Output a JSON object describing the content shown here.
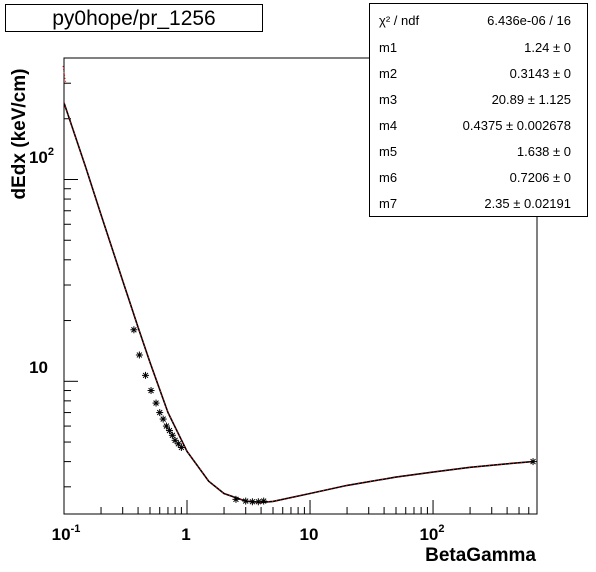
{
  "title": "py0hope/pr_1256",
  "stats": {
    "chi2_label": "χ² / ndf",
    "chi2_value": "6.436e-06 / 16",
    "params": [
      {
        "name": "m1",
        "value": "1.24 ±     0"
      },
      {
        "name": "m2",
        "value": "0.3143 ±     0"
      },
      {
        "name": "m3",
        "value": "20.89 ± 1.125"
      },
      {
        "name": "m4",
        "value": "0.4375 ± 0.002678"
      },
      {
        "name": "m5",
        "value": "1.638 ±     0"
      },
      {
        "name": "m6",
        "value": "0.7206 ±     0"
      },
      {
        "name": "m7",
        "value": "2.35 ± 0.02191"
      }
    ]
  },
  "chart_data": {
    "type": "scatter",
    "xlabel": "BetaGamma",
    "ylabel": "dEdx (keV/cm)",
    "xscale": "log",
    "yscale": "log",
    "xlim": [
      0.1,
      700
    ],
    "ylim": [
      2.2,
      400
    ],
    "x_tick_labels": [
      "10⁻¹",
      "1",
      "10",
      "10²"
    ],
    "y_tick_labels": [
      "10",
      "10²"
    ],
    "grid": false,
    "legend": "none",
    "marker_color": "#000000",
    "curve_color": "#ff0000",
    "series": [
      {
        "marker": "star",
        "x": [
          0.37,
          0.41,
          0.46,
          0.51,
          0.56,
          0.6,
          0.64,
          0.68,
          0.72,
          0.76,
          0.8,
          0.85,
          0.9,
          2.5,
          3.0,
          3.4,
          3.8,
          4.2,
          650
        ],
        "y": [
          18.0,
          13.5,
          10.7,
          9.0,
          7.8,
          7.0,
          6.5,
          6.0,
          5.7,
          5.4,
          5.1,
          4.9,
          4.7,
          2.6,
          2.55,
          2.53,
          2.53,
          2.55,
          4.0
        ]
      },
      {
        "marker": "line",
        "x": [
          0.1,
          0.15,
          0.2,
          0.3,
          0.4,
          0.5,
          0.7,
          1.0,
          1.5,
          2.0,
          3.0,
          4.0,
          5.0,
          10,
          20,
          50,
          100,
          200,
          400,
          650
        ],
        "y": [
          240,
          115,
          67,
          31.5,
          18.5,
          12.4,
          7.0,
          4.5,
          3.2,
          2.78,
          2.55,
          2.51,
          2.54,
          2.78,
          3.05,
          3.35,
          3.55,
          3.75,
          3.9,
          4.0
        ]
      }
    ]
  }
}
